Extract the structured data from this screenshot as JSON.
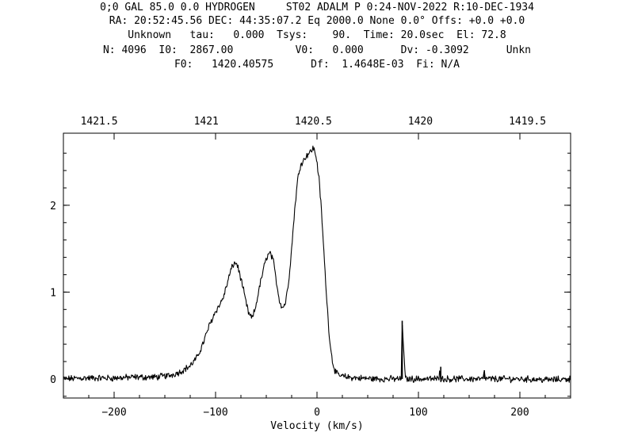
{
  "header": {
    "line1": "0;0 GAL 85.0 0.0 HYDROGEN     ST02 ADALM P 0:24-NOV-2022 R:10-DEC-1934",
    "line2": "RA: 20:52:45.56 DEC: 44:35:07.2 Eq 2000.0 None 0.0° Offs: +0.0 +0.0",
    "line3": "Unknown   tau:   0.000  Tsys:    90.  Time: 20.0sec  El: 72.8",
    "line4": "N: 4096  I0:  2867.00          V0:   0.000      Dv: -0.3092      Unkn",
    "line5": "F0:   1420.40575      Df:  1.4648E-03  Fi: N/A"
  },
  "chart_data": {
    "type": "line",
    "xlabel": "Velocity (km/s)",
    "ylabel": "",
    "xlim": [
      -250,
      250
    ],
    "ylim": [
      -0.22,
      2.83
    ],
    "x_ticks": [
      -200,
      -100,
      0,
      100,
      200
    ],
    "x_tick_labels": [
      "−200",
      "−100",
      "0",
      "100",
      "200"
    ],
    "y_ticks": [
      0,
      1,
      2
    ],
    "y_tick_labels": [
      "0",
      "1",
      "2"
    ],
    "top_axis_label": "",
    "top_ticks": [
      1421.5,
      1421,
      1420.5,
      1420,
      1419.5
    ],
    "top_tick_labels": [
      "1421.5",
      "1421",
      "1420.5",
      "1420",
      "1419.5"
    ],
    "top_axis_x_positions": [
      -214.8,
      -109.2,
      -3.6,
      101.9,
      207.5
    ],
    "grid": false,
    "series": [
      {
        "name": "",
        "x": [
          -250,
          -230,
          -200,
          -180,
          -160,
          -145,
          -135,
          -125,
          -118,
          -112,
          -106,
          -100,
          -96,
          -92,
          -88,
          -85,
          -82,
          -79,
          -76,
          -73,
          -70,
          -67,
          -64,
          -61,
          -58,
          -55,
          -52,
          -49,
          -46,
          -43,
          -40,
          -37,
          -34,
          -31,
          -28,
          -25,
          -22,
          -19,
          -16,
          -13,
          -10,
          -8,
          -6,
          -4,
          -2,
          0,
          2,
          4,
          6,
          8,
          10,
          12,
          14,
          16,
          18,
          20,
          22,
          25,
          30,
          40,
          60,
          80,
          83,
          84,
          87,
          100,
          120,
          121,
          122,
          140,
          160,
          164,
          165,
          166,
          200,
          230,
          250
        ],
        "y": [
          0.0,
          0.01,
          0.01,
          0.02,
          0.02,
          0.04,
          0.08,
          0.15,
          0.25,
          0.42,
          0.62,
          0.78,
          0.85,
          0.95,
          1.12,
          1.25,
          1.33,
          1.33,
          1.2,
          1.05,
          0.88,
          0.74,
          0.7,
          0.8,
          0.98,
          1.15,
          1.3,
          1.42,
          1.45,
          1.35,
          1.12,
          0.9,
          0.82,
          0.88,
          1.12,
          1.5,
          1.95,
          2.3,
          2.48,
          2.52,
          2.58,
          2.6,
          2.62,
          2.66,
          2.62,
          2.5,
          2.3,
          2.0,
          1.62,
          1.22,
          0.85,
          0.52,
          0.3,
          0.16,
          0.09,
          0.05,
          0.04,
          0.03,
          0.02,
          0.01,
          0.0,
          0.0,
          0.0,
          0.67,
          0.0,
          0.0,
          0.0,
          0.14,
          0.0,
          0.0,
          0.0,
          0.0,
          0.1,
          0.0,
          0.0,
          -0.01,
          0.0
        ]
      }
    ]
  }
}
